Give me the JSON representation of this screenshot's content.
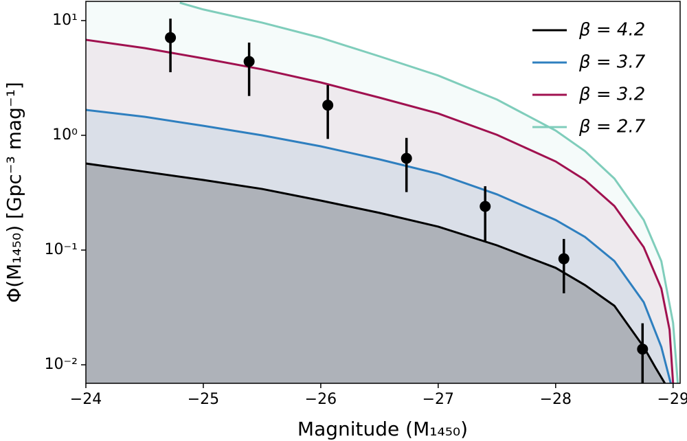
{
  "chart_data": {
    "type": "line",
    "xlabel": "Magnitude (M₁₄₅₀)",
    "ylabel": "Φ(M₁₄₅₀) [Gpc⁻³ mag⁻¹]",
    "xlim": [
      -24,
      -29.06
    ],
    "ylim": [
      0.0069,
      14.7
    ],
    "yscale": "log",
    "xticks": [
      {
        "value": -24,
        "label": "−24"
      },
      {
        "value": -25,
        "label": "−25"
      },
      {
        "value": -26,
        "label": "−26"
      },
      {
        "value": -27,
        "label": "−27"
      },
      {
        "value": -28,
        "label": "−28"
      },
      {
        "value": -29,
        "label": "−29"
      }
    ],
    "yticks": [
      {
        "value": 0.01,
        "label": "10⁻²"
      },
      {
        "value": 0.1,
        "label": "10⁻¹"
      },
      {
        "value": 1,
        "label": "10⁰"
      },
      {
        "value": 10,
        "label": "10¹"
      }
    ],
    "legend": "upper right",
    "series": [
      {
        "name": "β = 4.2",
        "color": "#000000",
        "x": [
          -24,
          -24.5,
          -25,
          -25.5,
          -26,
          -26.5,
          -27,
          -27.5,
          -28,
          -28.25,
          -28.5,
          -28.75,
          -28.85,
          -28.93
        ],
        "values": [
          0.568,
          0.482,
          0.408,
          0.341,
          0.27,
          0.211,
          0.16,
          0.11,
          0.07,
          0.0495,
          0.0327,
          0.0143,
          0.00946,
          0.0069
        ]
      },
      {
        "name": "β = 3.7",
        "color": "#2e7fbf",
        "x": [
          -24,
          -24.5,
          -25,
          -25.5,
          -26,
          -26.5,
          -27,
          -27.5,
          -28,
          -28.25,
          -28.5,
          -28.75,
          -28.9,
          -28.98
        ],
        "values": [
          1.666,
          1.45,
          1.21,
          1.0,
          0.802,
          0.617,
          0.462,
          0.306,
          0.183,
          0.13,
          0.0802,
          0.0351,
          0.0143,
          0.0069
        ]
      },
      {
        "name": "β = 3.2",
        "color": "#a0114f",
        "x": [
          -24,
          -24.5,
          -25,
          -25.5,
          -26,
          -26.5,
          -27,
          -27.5,
          -28,
          -28.25,
          -28.5,
          -28.75,
          -28.9,
          -28.97,
          -29.0
        ],
        "values": [
          6.8,
          5.76,
          4.68,
          3.76,
          2.89,
          2.13,
          1.55,
          1.01,
          0.592,
          0.408,
          0.242,
          0.106,
          0.0462,
          0.0202,
          0.0069
        ]
      },
      {
        "name": "β = 2.7",
        "color": "#7fcdbb",
        "x": [
          -24.8,
          -25,
          -25.5,
          -26,
          -26.5,
          -27,
          -27.5,
          -28,
          -28.25,
          -28.5,
          -28.75,
          -28.9,
          -29.0,
          -29.04
        ],
        "values": [
          14.3,
          12.5,
          9.6,
          7.08,
          4.88,
          3.32,
          2.05,
          1.1,
          0.728,
          0.42,
          0.183,
          0.08,
          0.0232,
          0.0069
        ]
      }
    ],
    "points": {
      "x": [
        -24.72,
        -25.39,
        -26.06,
        -26.73,
        -27.4,
        -28.07,
        -28.74
      ],
      "values": [
        7.1,
        4.4,
        1.83,
        0.63,
        0.24,
        0.084,
        0.0137
      ],
      "lower": [
        3.55,
        2.2,
        0.93,
        0.32,
        0.12,
        0.042,
        0.005
      ],
      "upper": [
        10.4,
        6.43,
        2.74,
        0.95,
        0.36,
        0.125,
        0.023
      ],
      "color": "#000000"
    }
  }
}
